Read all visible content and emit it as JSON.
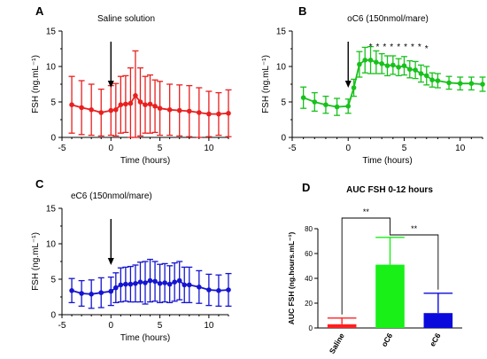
{
  "chart_data": [
    {
      "panel_label": "A",
      "title": "Saline solution",
      "type": "line",
      "xlabel": "Time (hours)",
      "ylabel": "FSH (ng.mL⁻¹)",
      "xlim": [
        -5,
        12
      ],
      "ylim": [
        0,
        15
      ],
      "xticks": [
        -5,
        0,
        5,
        10
      ],
      "yticks": [
        0,
        5,
        10,
        15
      ],
      "color": "#e8201f",
      "arrow_at_x": 0,
      "series": [
        {
          "x": [
            -4,
            -3,
            -2,
            -1,
            0,
            0.5,
            1,
            1.5,
            2,
            2.5,
            3,
            3.5,
            4,
            4.5,
            5,
            6,
            7,
            8,
            9,
            10,
            11,
            12
          ],
          "y": [
            4.6,
            4.2,
            3.9,
            3.5,
            3.8,
            3.9,
            4.6,
            4.7,
            4.8,
            5.9,
            5.0,
            4.6,
            4.7,
            4.4,
            4.1,
            3.9,
            3.8,
            3.7,
            3.5,
            3.3,
            3.3,
            3.4
          ],
          "err": [
            4.0,
            3.8,
            3.6,
            3.3,
            3.5,
            3.7,
            4.0,
            4.0,
            5.0,
            6.3,
            4.8,
            4.0,
            4.1,
            3.7,
            3.8,
            3.6,
            3.6,
            3.6,
            3.5,
            3.2,
            3.0,
            3.3
          ]
        }
      ]
    },
    {
      "panel_label": "B",
      "title": "oC6 (150nmol/mare)",
      "type": "line",
      "xlabel": "Time (hours)",
      "ylabel": "FSH (ng.mL⁻¹)",
      "xlim": [
        -5,
        12
      ],
      "ylim": [
        0,
        15
      ],
      "xticks": [
        -5,
        0,
        5,
        10
      ],
      "yticks": [
        0,
        5,
        10,
        15
      ],
      "color": "#17c11a",
      "arrow_at_x": 0,
      "significance_marks": "*********",
      "series": [
        {
          "x": [
            -4,
            -3,
            -2,
            -1,
            0,
            0.5,
            1,
            1.5,
            2,
            2.5,
            3,
            3.5,
            4,
            4.5,
            5,
            5.5,
            6,
            6.5,
            7,
            7.5,
            8,
            9,
            10,
            11,
            12
          ],
          "y": [
            5.6,
            5.0,
            4.6,
            4.3,
            4.4,
            7.0,
            10.3,
            10.9,
            10.9,
            10.6,
            10.4,
            10.1,
            10.2,
            9.9,
            10.1,
            9.6,
            9.5,
            9.0,
            8.7,
            8.1,
            8.0,
            7.7,
            7.6,
            7.6,
            7.5
          ],
          "err": [
            1.5,
            1.3,
            1.2,
            1.2,
            1.0,
            1.2,
            1.8,
            1.8,
            1.9,
            1.6,
            1.4,
            1.4,
            1.3,
            1.2,
            1.3,
            1.2,
            1.2,
            1.2,
            1.3,
            1.0,
            1.0,
            0.9,
            0.9,
            0.9,
            1.0
          ]
        }
      ]
    },
    {
      "panel_label": "C",
      "title": "eC6 (150nmol/mare)",
      "type": "line",
      "xlabel": "Time (hours)",
      "ylabel": "FSH (ng.mL⁻¹)",
      "xlim": [
        -5,
        12
      ],
      "ylim": [
        0,
        15
      ],
      "xticks": [
        -5,
        0,
        5,
        10
      ],
      "yticks": [
        0,
        5,
        10,
        15
      ],
      "color": "#1515cf",
      "arrow_at_x": 0,
      "series": [
        {
          "x": [
            -4,
            -3,
            -2,
            -1,
            0,
            0.5,
            1,
            1.5,
            2,
            2.5,
            3,
            3.5,
            4,
            4.5,
            5,
            5.5,
            6,
            6.5,
            7,
            7.5,
            8,
            9,
            10,
            11,
            12
          ],
          "y": [
            3.4,
            3.0,
            2.9,
            3.1,
            3.3,
            3.8,
            4.2,
            4.3,
            4.3,
            4.4,
            4.6,
            4.5,
            4.8,
            4.7,
            4.4,
            4.5,
            4.3,
            4.6,
            4.8,
            4.2,
            4.2,
            3.9,
            3.5,
            3.4,
            3.5
          ],
          "err": [
            1.7,
            1.8,
            2.0,
            2.1,
            2.0,
            2.1,
            2.4,
            2.4,
            2.5,
            2.6,
            2.8,
            3.0,
            3.0,
            2.8,
            2.7,
            2.7,
            2.6,
            2.7,
            2.7,
            2.5,
            2.5,
            2.3,
            2.2,
            2.2,
            2.3
          ]
        }
      ]
    },
    {
      "panel_label": "D",
      "title": "AUC FSH 0-12 hours",
      "type": "bar",
      "xlabel": "",
      "ylabel": "AUC FSH (ng.hours.mL⁻¹)",
      "ylim": [
        0,
        80
      ],
      "yticks": [
        0,
        20,
        40,
        60,
        80
      ],
      "categories": [
        "Saline",
        "oC6",
        "eC6"
      ],
      "values": [
        3,
        51,
        12
      ],
      "errors": [
        5,
        22,
        16
      ],
      "colors": [
        "#ff1f1f",
        "#18f018",
        "#0a0adc"
      ],
      "comparisons": [
        {
          "between": [
            "Saline",
            "oC6"
          ],
          "label": "**"
        },
        {
          "between": [
            "oC6",
            "eC6"
          ],
          "label": "**"
        }
      ]
    }
  ]
}
